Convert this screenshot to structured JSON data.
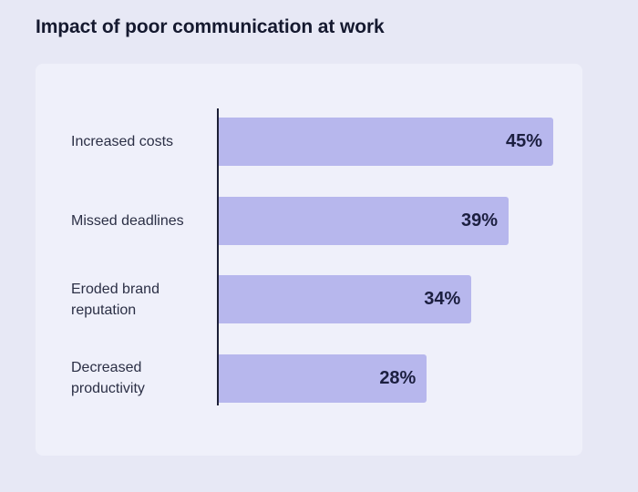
{
  "chart_data": {
    "type": "bar",
    "orientation": "horizontal",
    "title": "Impact of poor communication at work",
    "categories": [
      "Increased costs",
      "Missed deadlines",
      "Eroded brand reputation",
      "Decreased productivity"
    ],
    "category_lines": [
      [
        "Increased costs"
      ],
      [
        "Missed deadlines"
      ],
      [
        "Eroded brand",
        "reputation"
      ],
      [
        "Decreased",
        "productivity"
      ]
    ],
    "values": [
      45,
      39,
      34,
      28
    ],
    "value_labels": [
      "45%",
      "39%",
      "34%",
      "28%"
    ],
    "xlim": [
      0,
      45
    ],
    "grid": false,
    "colors": {
      "bar": "#b7b7ed",
      "axis": "#1c1f36",
      "card": "#eff0fa",
      "background": "#e7e8f5"
    }
  }
}
